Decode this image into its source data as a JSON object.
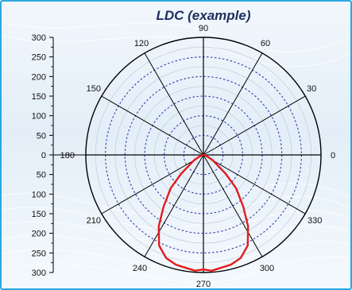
{
  "chart_data": {
    "type": "polar",
    "title": "LDC (example)",
    "angle_ticks": [
      "0",
      "30",
      "60",
      "90",
      "120",
      "150",
      "180",
      "210",
      "240",
      "270",
      "300",
      "330"
    ],
    "angle_tick_values": [
      0,
      30,
      60,
      90,
      120,
      150,
      180,
      210,
      240,
      270,
      300,
      330
    ],
    "radial_axis_labels": [
      "300",
      "250",
      "200",
      "150",
      "100",
      "50",
      "0",
      "50",
      "100",
      "150",
      "200",
      "250",
      "300"
    ],
    "radial_axis_values": [
      300,
      250,
      200,
      150,
      100,
      50,
      0,
      -50,
      -100,
      -150,
      -200,
      -250,
      -300
    ],
    "rlim": [
      0,
      300
    ],
    "rings_major": [
      50,
      100,
      150,
      200,
      250
    ],
    "grid": true,
    "series": [
      {
        "color": "#e21b1b",
        "angle_deg": [
          180,
          190,
          200,
          210,
          220,
          226,
          232,
          238,
          244,
          250,
          256,
          262,
          266,
          270,
          274,
          278,
          284,
          290,
          296,
          302,
          308,
          314,
          320,
          330,
          340,
          350,
          360
        ],
        "r": [
          0,
          3,
          10,
          28,
          75,
          120,
          165,
          215,
          258,
          278,
          290,
          292,
          295,
          294,
          295,
          292,
          290,
          278,
          258,
          215,
          165,
          120,
          75,
          28,
          10,
          3,
          0
        ]
      }
    ]
  },
  "colors": {
    "frame_border": "#2aa8e0",
    "curve": "#e21b1b",
    "dotted_ring": "#3a3aa8",
    "axis": "#000000",
    "title": "#1e2f5e"
  }
}
